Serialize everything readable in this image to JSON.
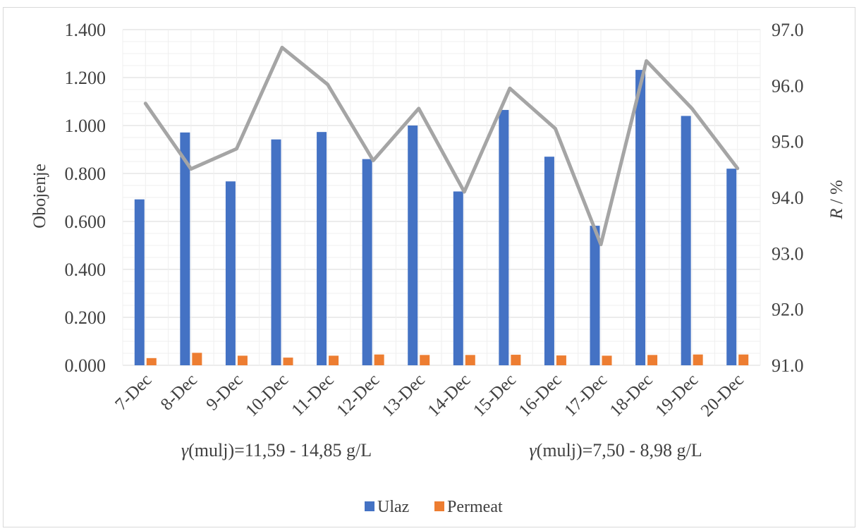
{
  "chart_data": {
    "type": "bar",
    "categories": [
      "7-Dec",
      "8-Dec",
      "9-Dec",
      "10-Dec",
      "11-Dec",
      "12-Dec",
      "13-Dec",
      "14-Dec",
      "15-Dec",
      "16-Dec",
      "17-Dec",
      "18-Dec",
      "19-Dec",
      "20-Dec"
    ],
    "series": [
      {
        "name": "Ulaz",
        "type": "bar",
        "axis": "left",
        "color": "#4472c4",
        "values": [
          0.692,
          0.971,
          0.767,
          0.942,
          0.973,
          0.86,
          1.0,
          0.725,
          1.065,
          0.87,
          0.582,
          1.232,
          1.04,
          0.82
        ]
      },
      {
        "name": "Permeat",
        "type": "bar",
        "axis": "left",
        "color": "#ed7d31",
        "values": [
          0.03,
          0.052,
          0.04,
          0.032,
          0.04,
          0.045,
          0.043,
          0.043,
          0.044,
          0.041,
          0.04,
          0.043,
          0.045,
          0.045
        ]
      },
      {
        "type": "line",
        "axis": "right",
        "color": "#a5a5a5",
        "values": [
          95.68,
          94.51,
          94.87,
          96.68,
          96.02,
          94.66,
          95.59,
          94.1,
          95.95,
          95.23,
          93.16,
          96.44,
          95.59,
          94.52
        ]
      }
    ],
    "ylabel": "Obojenje",
    "y2label_italic": "R",
    "y2label_rest": " / %",
    "ylim": [
      0,
      1.4
    ],
    "y_ticks": [
      "0.000",
      "0.200",
      "0.400",
      "0.600",
      "0.800",
      "1.000",
      "1.200",
      "1.400"
    ],
    "y2lim": [
      91.0,
      97.0
    ],
    "y2_ticks": [
      "91.0",
      "92.0",
      "93.0",
      "94.0",
      "95.0",
      "96.0",
      "97.0"
    ],
    "grid": true,
    "legend_position": "bottom",
    "annotations": [
      {
        "italic": "γ",
        "text": "(mulj)=11,59 - 14,85 g/L"
      },
      {
        "italic": "γ",
        "text": "(mulj)=7,50 - 8,98 g/L"
      }
    ]
  }
}
